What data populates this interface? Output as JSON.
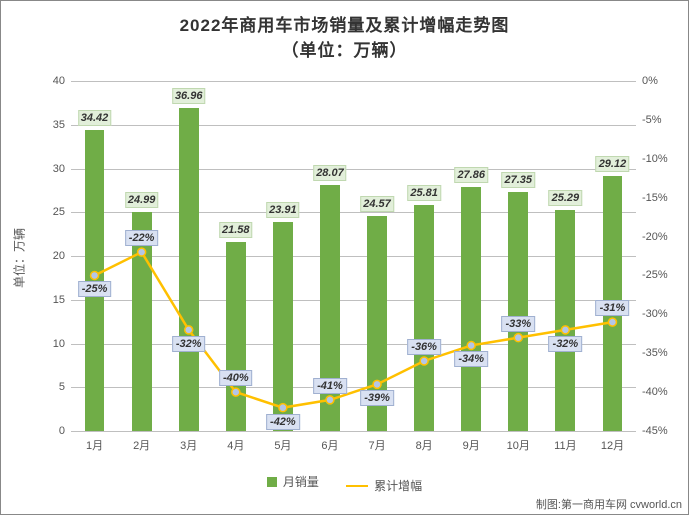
{
  "chart": {
    "title": "2022年商用车市场销量及累计增幅走势图",
    "subtitle": "（单位：万辆）",
    "y_left_title": "单位：万辆",
    "y_left": {
      "min": 0,
      "max": 40,
      "step": 5
    },
    "y_right": {
      "min": -45,
      "max": 0,
      "step": 5,
      "suffix": "%"
    },
    "categories": [
      "1月",
      "2月",
      "3月",
      "4月",
      "5月",
      "6月",
      "7月",
      "8月",
      "9月",
      "10月",
      "11月",
      "12月"
    ],
    "bar_series": {
      "name": "月销量",
      "color": "#70ad47",
      "label_bg": "#e2efda",
      "values": [
        34.42,
        24.99,
        36.96,
        21.58,
        23.91,
        28.07,
        24.57,
        25.81,
        27.86,
        27.35,
        25.29,
        29.12
      ]
    },
    "line_series": {
      "name": "累计增幅",
      "color": "#ffc000",
      "marker_fill": "#b4c6e7",
      "label_bg": "#d9e1f2",
      "values": [
        -25,
        -22,
        -32,
        -40,
        -42,
        -41,
        -39,
        -36,
        -34,
        -33,
        -32,
        -31
      ],
      "suffix": "%"
    },
    "grid_color": "#bfbfbf",
    "bar_width_ratio": 0.42,
    "footer": "制图:第一商用车网 cvworld.cn"
  }
}
